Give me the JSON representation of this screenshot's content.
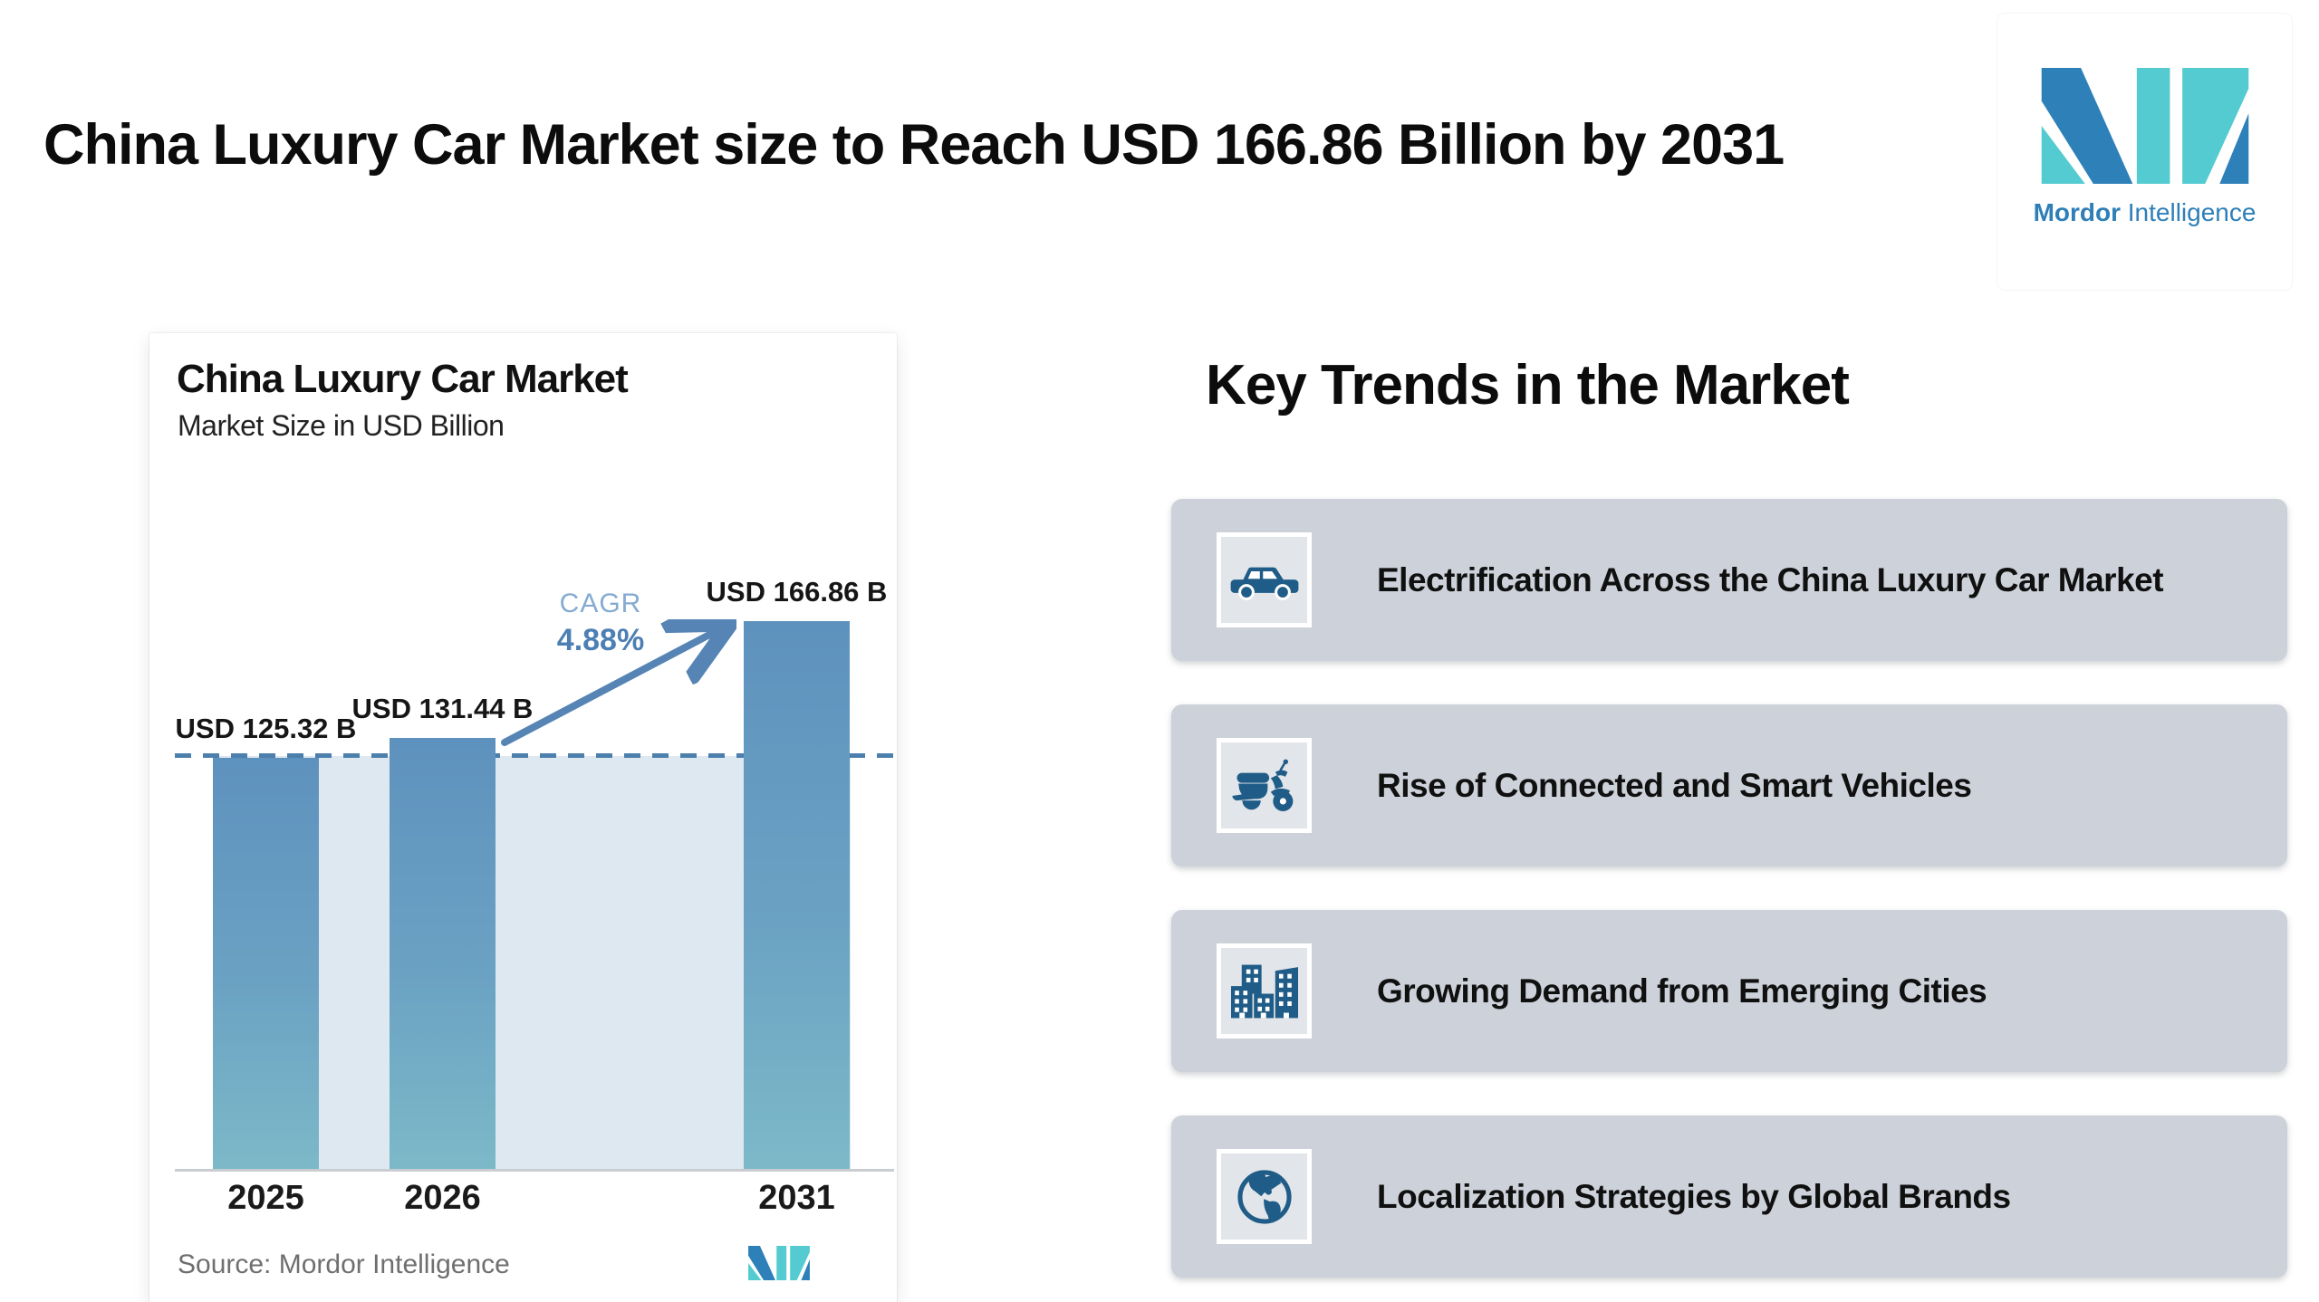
{
  "page": {
    "title": "China Luxury Car Market size to Reach USD 166.86 Billion by 2031"
  },
  "logo": {
    "brand_bold": "Mordor",
    "brand_regular": "Intelligence"
  },
  "chart_data": {
    "type": "bar",
    "title": "China Luxury Car Market",
    "subtitle": "Market Size in USD Billion",
    "unit": "USD Billion",
    "categories": [
      "2025",
      "2026",
      "2031"
    ],
    "values": [
      125.32,
      131.44,
      166.86
    ],
    "value_labels": [
      "USD 125.32 B",
      "USD 131.44 B",
      "USD 166.86 B"
    ],
    "cagr_label": "CAGR",
    "cagr_value": "4.88%",
    "reference_line_at": 125.32,
    "ylim": [
      0,
      180
    ],
    "grid": false,
    "legend": false,
    "source": "Source: Mordor Intelligence"
  },
  "trends": {
    "heading": "Key Trends in the Market",
    "items": [
      {
        "icon": "car-icon",
        "label": "Electrification Across the China Luxury Car Market"
      },
      {
        "icon": "scooter-icon",
        "label": "Rise of Connected and Smart Vehicles"
      },
      {
        "icon": "buildings-icon",
        "label": "Growing Demand from Emerging Cities"
      },
      {
        "icon": "globe-icon",
        "label": "Localization Strategies by Global Brands"
      }
    ]
  },
  "colors": {
    "bar_top": "#5e92be",
    "bar_bottom": "#7cb9c8",
    "plot_fill": "#dde8f1",
    "dashed_line": "#4d7fad",
    "arrow": "#5584b5",
    "cagr_label_text": "#85abd1",
    "cagr_value_text": "#4c7fb4",
    "trend_card_bg": "#cdd2da",
    "icon_blue": "#1f5c87",
    "logo_blue": "#2e80b9",
    "logo_teal": "#54cbd0",
    "source_text": "#6f6f6f"
  }
}
